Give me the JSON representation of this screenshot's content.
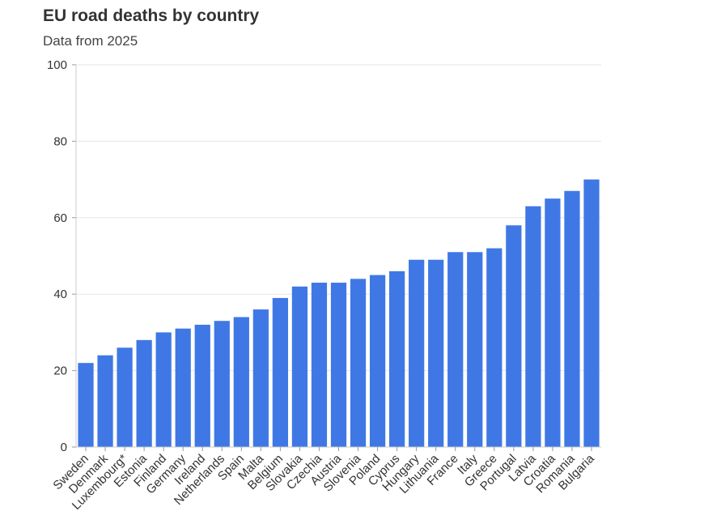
{
  "chart_data": {
    "type": "bar",
    "title": "EU road deaths by country",
    "subtitle": "Data from 2025",
    "xlabel": "",
    "ylabel": "",
    "categories": [
      "Sweden",
      "Denmark",
      "Luxembourg*",
      "Estonia",
      "Finland",
      "Germany",
      "Ireland",
      "Netherlands",
      "Spain",
      "Malta",
      "Belgium",
      "Slovakia",
      "Czechia",
      "Austria",
      "Slovenia",
      "Poland",
      "Cyprus",
      "Hungary",
      "Lithuania",
      "France",
      "Italy",
      "Greece",
      "Portugal",
      "Latvia",
      "Croatia",
      "Romania",
      "Bulgaria"
    ],
    "values": [
      22,
      24,
      26,
      28,
      30,
      31,
      32,
      33,
      34,
      36,
      39,
      42,
      43,
      43,
      44,
      45,
      46,
      49,
      49,
      51,
      51,
      52,
      58,
      63,
      65,
      67,
      70
    ],
    "ylim": [
      0,
      100
    ],
    "yticks": [
      0,
      20,
      40,
      60,
      80,
      100
    ],
    "grid": true,
    "legend": "none",
    "bar_color": "#3f78e5"
  }
}
